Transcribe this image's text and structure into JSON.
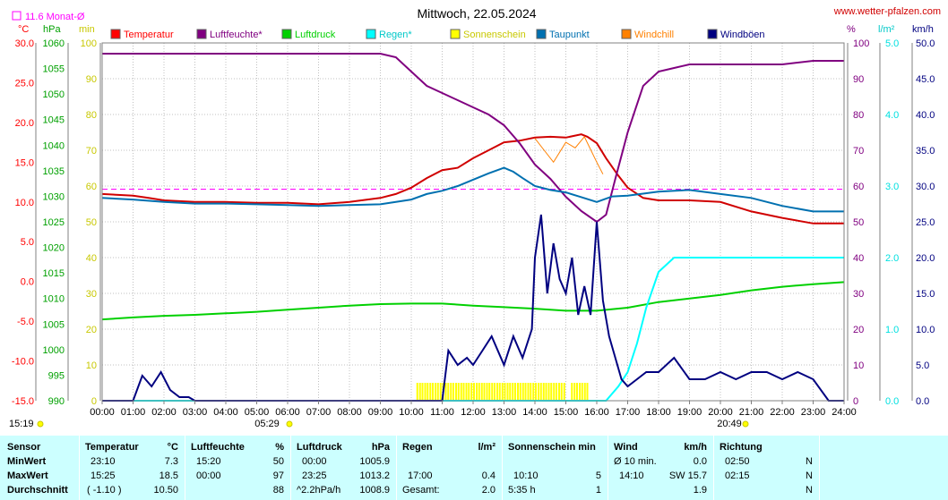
{
  "chart_data": {
    "type": "line",
    "title": "Mittwoch, 22.05.2024",
    "source": "www.wetter-pfalzen.com",
    "month_avg_label": "11.6 Monat-Ø",
    "month_avg_temp": 11.6,
    "x_ticks": [
      "00:00",
      "01:00",
      "02:00",
      "03:00",
      "04:00",
      "05:00",
      "06:00",
      "07:00",
      "08:00",
      "09:00",
      "10:00",
      "11:00",
      "12:00",
      "13:00",
      "14:00",
      "15:00",
      "16:00",
      "17:00",
      "18:00",
      "19:00",
      "20:00",
      "21:00",
      "22:00",
      "23:00",
      "24:00"
    ],
    "sunrise": "05:29",
    "sunset": "20:49",
    "time_left": "15:19",
    "axes": {
      "temp": {
        "unit": "°C",
        "range": [
          -15,
          30
        ],
        "ticks": [
          "30.0",
          "25.0",
          "20.0",
          "15.0",
          "10.0",
          "5.0",
          "0.0",
          "-5.0",
          "-10.0",
          "-15.0"
        ],
        "color": "#ff0000"
      },
      "pressure": {
        "unit": "hPa",
        "range": [
          990,
          1060
        ],
        "ticks": [
          "1060",
          "1055",
          "1050",
          "1045",
          "1040",
          "1035",
          "1030",
          "1025",
          "1020",
          "1015",
          "1010",
          "1005",
          "1000",
          "995",
          "990"
        ],
        "color": "#00a000"
      },
      "sunshine": {
        "unit": "min",
        "range": [
          0,
          100
        ],
        "ticks": [
          "100",
          "90",
          "80",
          "70",
          "60",
          "50",
          "40",
          "30",
          "20",
          "10",
          "0"
        ],
        "color": "#c8c800"
      },
      "humidity": {
        "unit": "%",
        "range": [
          0,
          100
        ],
        "ticks": [
          "100",
          "90",
          "80",
          "70",
          "60",
          "50",
          "40",
          "30",
          "20",
          "10",
          "0"
        ],
        "color": "#800080"
      },
      "rain": {
        "unit": "l/m²",
        "range": [
          0,
          5
        ],
        "ticks": [
          "5.0",
          "4.0",
          "3.0",
          "2.0",
          "1.0",
          "0.0"
        ],
        "color": "#00e0e0"
      },
      "wind": {
        "unit": "km/h",
        "range": [
          0,
          50
        ],
        "ticks": [
          "50.0",
          "45.0",
          "40.0",
          "35.0",
          "30.0",
          "25.0",
          "20.0",
          "15.0",
          "10.0",
          "5.0",
          "0.0"
        ],
        "color": "#000080"
      }
    },
    "legend": [
      {
        "name": "Temperatur",
        "color": "#ff0000"
      },
      {
        "name": "Luftfeuchte*",
        "color": "#800080"
      },
      {
        "name": "Luftdruck",
        "color": "#00d000"
      },
      {
        "name": "Regen*",
        "color": "#00ffff"
      },
      {
        "name": "Sonnenschein",
        "color": "#ffff00"
      },
      {
        "name": "Taupunkt",
        "color": "#0070b0"
      },
      {
        "name": "Windchill",
        "color": "#ff8000"
      },
      {
        "name": "Windböen",
        "color": "#000080"
      }
    ],
    "series": [
      {
        "name": "Temperatur",
        "axis": "temp",
        "color": "#d00000",
        "x": [
          0,
          1,
          1.5,
          2,
          3,
          4,
          5,
          6,
          7,
          8,
          9,
          9.5,
          10,
          10.5,
          11,
          11.5,
          12,
          12.5,
          13,
          13.5,
          14,
          14.5,
          15,
          15.5,
          15.7,
          16,
          16.3,
          16.7,
          17,
          17.5,
          18,
          19,
          20,
          21,
          22,
          23,
          24
        ],
        "values": [
          11.0,
          10.8,
          10.5,
          10.2,
          10.0,
          10.0,
          9.9,
          9.9,
          9.7,
          10.0,
          10.5,
          11.0,
          11.8,
          13.0,
          14.0,
          14.3,
          15.5,
          16.5,
          17.5,
          17.7,
          18.1,
          18.2,
          18.1,
          18.5,
          18.2,
          17.4,
          15.5,
          13.3,
          11.8,
          10.5,
          10.2,
          10.2,
          10.0,
          8.8,
          8.0,
          7.3,
          7.3
        ]
      },
      {
        "name": "Luftfeuchte*",
        "axis": "humidity",
        "color": "#800080",
        "x": [
          0,
          3,
          6,
          9,
          9.5,
          10,
          10.5,
          11,
          11.5,
          12,
          12.5,
          13,
          13.5,
          14,
          14.5,
          15,
          15.5,
          16,
          16.3,
          16.6,
          17,
          17.5,
          18,
          18.5,
          19,
          20,
          21,
          22,
          23,
          24
        ],
        "values": [
          97,
          97,
          97,
          97,
          96,
          92,
          88,
          86,
          84,
          82,
          80,
          77,
          72,
          66,
          62,
          57,
          53,
          50,
          52,
          62,
          75,
          88,
          92,
          93,
          94,
          94,
          94,
          94,
          95,
          95
        ]
      },
      {
        "name": "Luftdruck",
        "axis": "pressure",
        "color": "#00d000",
        "x": [
          0,
          1,
          2,
          3,
          4,
          5,
          6,
          7,
          8,
          9,
          10,
          11,
          12,
          13,
          14,
          15,
          16,
          17,
          18,
          19,
          20,
          21,
          22,
          23,
          24
        ],
        "values": [
          1005.9,
          1006.3,
          1006.6,
          1006.8,
          1007.1,
          1007.4,
          1007.8,
          1008.2,
          1008.6,
          1008.9,
          1009.0,
          1009.0,
          1008.6,
          1008.3,
          1008.0,
          1007.6,
          1007.6,
          1008.2,
          1009.3,
          1010.0,
          1010.7,
          1011.6,
          1012.3,
          1012.8,
          1013.2
        ]
      },
      {
        "name": "Taupunkt",
        "axis": "temp",
        "color": "#0070b0",
        "x": [
          0,
          1,
          2,
          3,
          4,
          5,
          6,
          7,
          8,
          9,
          10,
          10.5,
          11,
          11.5,
          12,
          12.5,
          13,
          13.3,
          13.6,
          14,
          14.5,
          15,
          15.5,
          16,
          16.5,
          17,
          18,
          19,
          20,
          21,
          22,
          23,
          24
        ],
        "values": [
          10.5,
          10.3,
          10.0,
          9.8,
          9.8,
          9.7,
          9.6,
          9.5,
          9.6,
          9.7,
          10.3,
          11.0,
          11.4,
          12.0,
          12.8,
          13.6,
          14.3,
          13.8,
          13.0,
          12.0,
          11.5,
          11.2,
          10.6,
          10.0,
          10.7,
          10.8,
          11.3,
          11.5,
          11.0,
          10.5,
          9.5,
          8.8,
          8.8
        ]
      },
      {
        "name": "Windchill",
        "axis": "temp",
        "color": "#ff8000",
        "x": [
          14.0,
          14.3,
          14.6,
          15.0,
          15.3,
          15.6,
          16.0,
          16.2
        ],
        "values": [
          18.0,
          16.5,
          15.0,
          17.5,
          16.8,
          18.2,
          15.0,
          13.5
        ]
      },
      {
        "name": "Regen*",
        "axis": "rain",
        "color": "#00ffff",
        "x": [
          0,
          16.3,
          16.7,
          17,
          17.3,
          17.6,
          18,
          18.5,
          19,
          20,
          21,
          22,
          23,
          24
        ],
        "values": [
          0,
          0,
          0.2,
          0.4,
          0.8,
          1.3,
          1.8,
          2.0,
          2.0,
          2.0,
          2.0,
          2.0,
          2.0,
          2.0
        ]
      },
      {
        "name": "Windböen",
        "axis": "wind",
        "color": "#000080",
        "x": [
          0,
          1,
          1.3,
          1.6,
          1.9,
          2.2,
          2.5,
          2.8,
          3,
          10,
          11,
          11.2,
          11.5,
          11.8,
          12,
          12.3,
          12.6,
          13,
          13.3,
          13.6,
          13.9,
          14,
          14.2,
          14.4,
          14.6,
          14.8,
          15,
          15.2,
          15.4,
          15.6,
          15.8,
          16,
          16.2,
          16.4,
          16.6,
          16.8,
          17,
          17.3,
          17.6,
          18,
          18.5,
          19,
          19.5,
          20,
          20.5,
          21,
          21.5,
          22,
          22.5,
          23,
          23.5,
          24
        ],
        "values": [
          0,
          0,
          3.5,
          2,
          4,
          1.5,
          0.5,
          0.5,
          0,
          0,
          0,
          7,
          5,
          6,
          5,
          7,
          9,
          5,
          9,
          6,
          10,
          20,
          26,
          15,
          22,
          17,
          15,
          20,
          12,
          16,
          12,
          25,
          14,
          9,
          6,
          3,
          2,
          3,
          4,
          4,
          6,
          3,
          3,
          4,
          3,
          4,
          4,
          3,
          4,
          3,
          0,
          0
        ]
      }
    ],
    "sunshine_bars": {
      "axis": "sunshine",
      "color": "#ffff00",
      "ranges": [
        [
          "10:10",
          "15:00"
        ],
        [
          "15:10",
          "15:45"
        ]
      ],
      "value": 5
    }
  },
  "table": {
    "row_labels": [
      "Sensor",
      "MinWert",
      "MaxWert",
      "Durchschnitt"
    ],
    "temp": {
      "header": "Temperatur",
      "unit": "°C",
      "min_time": "23:10",
      "min": "7.3",
      "max_time": "15:25",
      "max": "18.5",
      "avg_left": "( -1.10 )",
      "avg": "10.50"
    },
    "hum": {
      "header": "Luftfeuchte",
      "unit": "%",
      "min_time": "15:20",
      "min": "50",
      "max_time": "00:00",
      "max": "97",
      "avg": "88"
    },
    "press": {
      "header": "Luftdruck",
      "unit": "hPa",
      "min_time": "00:00",
      "min": "1005.9",
      "max_time": "23:25",
      "max": "1013.2",
      "avg_left": "^2.2hPa/h",
      "avg": "1008.9"
    },
    "rain": {
      "header": "Regen",
      "unit": "l/m²",
      "max_time": "17:00",
      "max": "0.4",
      "avg_left": "Gesamt:",
      "avg": "2.0"
    },
    "sun": {
      "header": "Sonnenschein min",
      "max_time": "10:10",
      "max": "5",
      "avg_left": "5:35 h",
      "avg": "1"
    },
    "wind": {
      "header": "Wind",
      "unit": "km/h",
      "min_label": "Ø 10 min.",
      "min": "0.0",
      "max_time": "14:10",
      "max": "SW 15.7",
      "avg": "1.9"
    },
    "dir": {
      "header": "Richtung",
      "min_time": "02:50",
      "min": "N",
      "max_time": "02:15",
      "max": "N",
      "avg": "N"
    }
  }
}
